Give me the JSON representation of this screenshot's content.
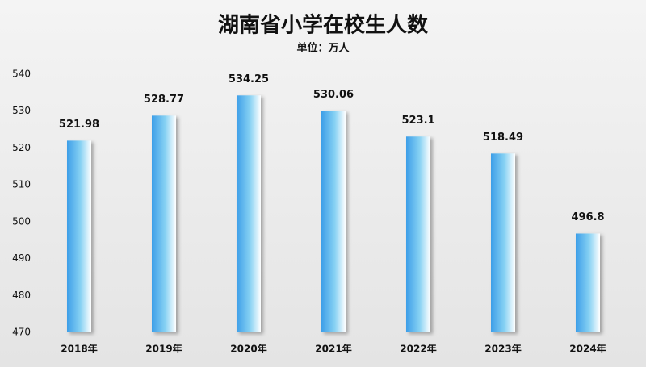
{
  "chart_data": {
    "type": "bar",
    "title": "湖南省小学在校生人数",
    "subtitle": "单位：万人",
    "categories": [
      "2018年",
      "2019年",
      "2020年",
      "2021年",
      "2022年",
      "2023年",
      "2024年"
    ],
    "values": [
      521.98,
      528.77,
      534.25,
      530.06,
      523.1,
      518.49,
      496.8
    ],
    "color": "#3d9ee8",
    "ylim": [
      470,
      540
    ],
    "yticks": [
      470,
      480,
      490,
      500,
      510,
      520,
      530,
      540
    ],
    "grid": false
  }
}
